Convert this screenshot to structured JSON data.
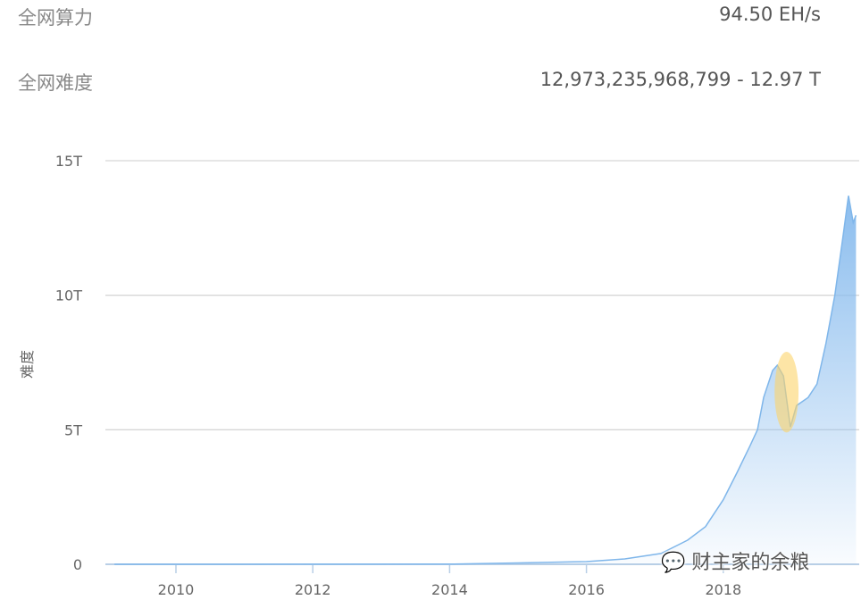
{
  "stats": [
    {
      "label": "全网算力",
      "value": "94.50 EH/s"
    },
    {
      "label": "全网难度",
      "value": "12,973,235,968,799 - 12.97 T"
    }
  ],
  "watermark": "财主家的余粮",
  "chart_data": {
    "type": "area",
    "title": "",
    "xlabel": "",
    "ylabel": "难度",
    "xlim": [
      2009.0,
      2019.96
    ],
    "ylim": [
      0,
      15
    ],
    "y_unit": "T",
    "yticks": [
      {
        "v": 0,
        "label": "0"
      },
      {
        "v": 5,
        "label": "5T"
      },
      {
        "v": 10,
        "label": "10T"
      },
      {
        "v": 15,
        "label": "15T"
      }
    ],
    "xticks": [
      {
        "v": 2010,
        "label": "2010"
      },
      {
        "v": 2012,
        "label": "2012"
      },
      {
        "v": 2014,
        "label": "2014"
      },
      {
        "v": 2016,
        "label": "2016"
      },
      {
        "v": 2018,
        "label": "2018"
      }
    ],
    "grid": true,
    "line_color": "#7fb6ea",
    "fill_color": "#8bbdee",
    "highlight_color": "#fbd46a",
    "highlight_range": {
      "x": [
        2018.75,
        2019.1
      ],
      "y": [
        4.9,
        7.9
      ]
    },
    "series": [
      {
        "x": [
          2009.1,
          2012.0,
          2014.0,
          2015.0,
          2016.0,
          2016.56,
          2017.09,
          2017.48,
          2017.74,
          2018.0,
          2018.2,
          2018.39,
          2018.5,
          2018.59,
          2018.72,
          2018.79,
          2018.88,
          2018.98,
          2019.07,
          2019.24,
          2019.37,
          2019.5,
          2019.63,
          2019.74,
          2019.83,
          2019.9,
          2019.94
        ],
        "y": [
          0,
          0.002,
          0.005,
          0.05,
          0.1,
          0.2,
          0.4,
          0.9,
          1.4,
          2.4,
          3.4,
          4.4,
          5.0,
          6.2,
          7.2,
          7.4,
          7.0,
          5.1,
          5.9,
          6.2,
          6.7,
          8.2,
          10.0,
          12.0,
          13.7,
          12.7,
          12.97
        ]
      }
    ]
  }
}
